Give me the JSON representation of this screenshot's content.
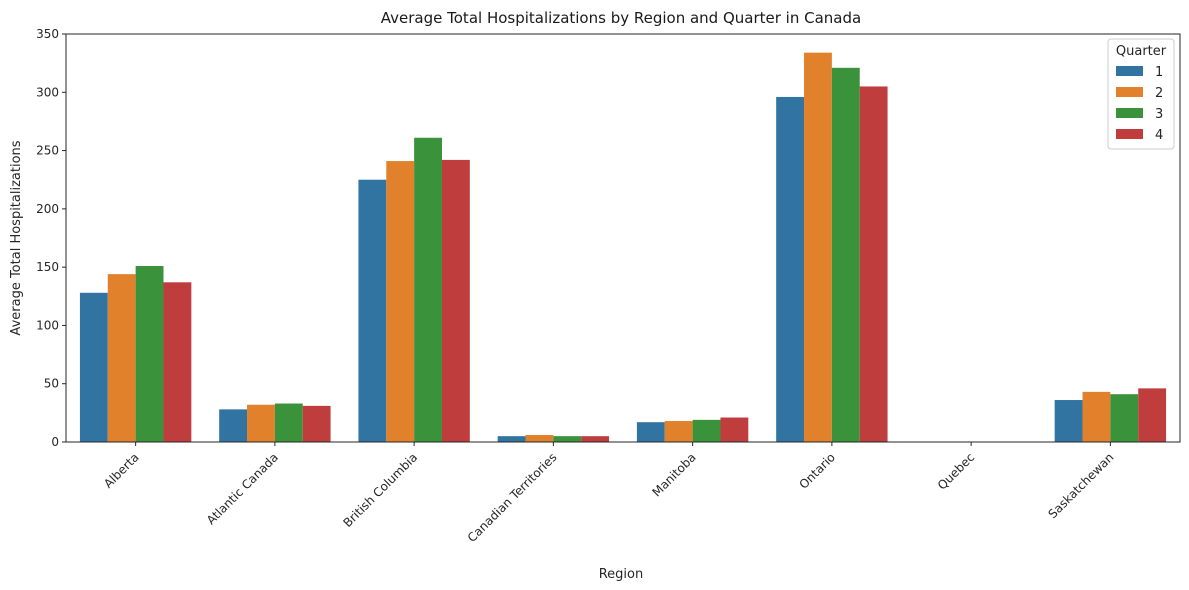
{
  "chart_data": {
    "type": "bar",
    "title": "Average Total Hospitalizations by Region and Quarter in Canada",
    "xlabel": "Region",
    "ylabel": "Average Total Hospitalizations",
    "ylim": [
      0,
      350
    ],
    "yticks": [
      0,
      50,
      100,
      150,
      200,
      250,
      300,
      350
    ],
    "grid": false,
    "legend": {
      "title": "Quarter",
      "placement": "top-right"
    },
    "categories": [
      "Alberta",
      "Atlantic Canada",
      "British Columbia",
      "Canadian Territories",
      "Manitoba",
      "Ontario",
      "Quebec",
      "Saskatchewan"
    ],
    "series": [
      {
        "name": "1",
        "color": "#3274a1",
        "values": [
          128,
          28,
          225,
          5,
          17,
          296,
          0,
          36
        ]
      },
      {
        "name": "2",
        "color": "#e1812c",
        "values": [
          144,
          32,
          241,
          6,
          18,
          334,
          0,
          43
        ]
      },
      {
        "name": "3",
        "color": "#3a923a",
        "values": [
          151,
          33,
          261,
          5,
          19,
          321,
          0,
          41
        ]
      },
      {
        "name": "4",
        "color": "#c03d3e",
        "values": [
          137,
          31,
          242,
          5,
          21,
          305,
          0,
          46
        ]
      }
    ]
  }
}
